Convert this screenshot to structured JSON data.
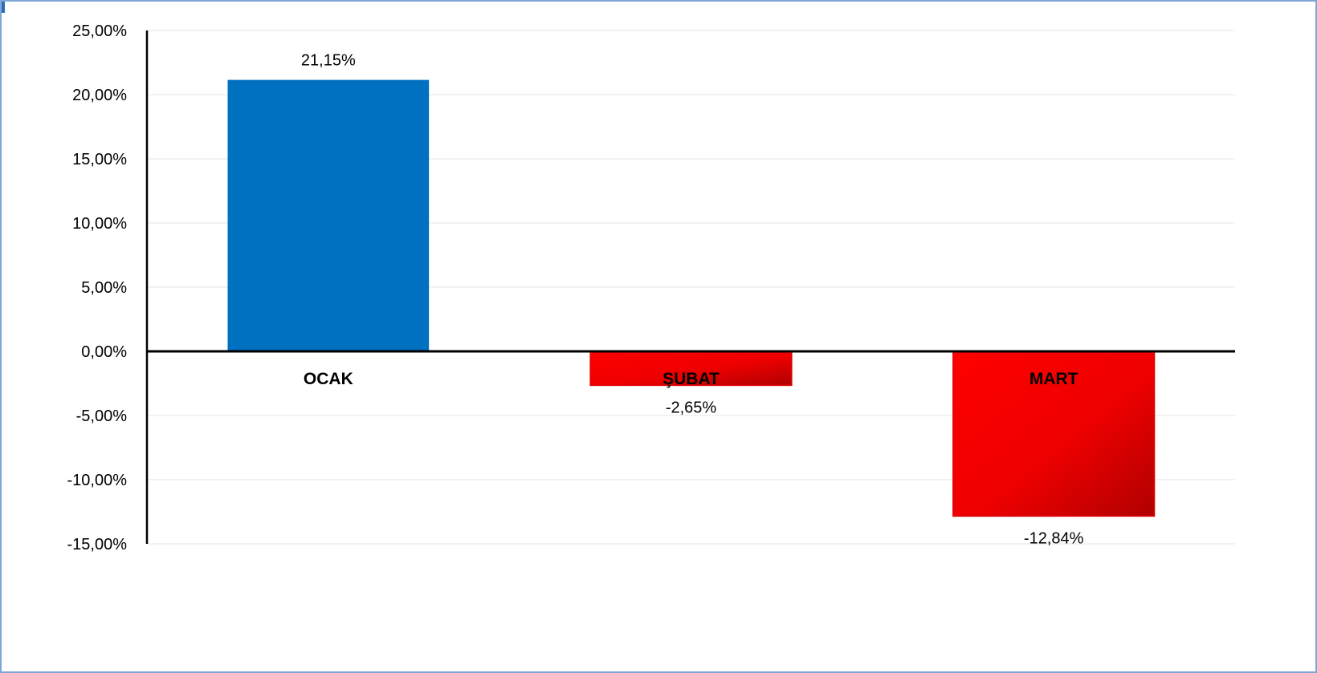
{
  "chart_data": {
    "type": "bar",
    "title": "",
    "xlabel": "",
    "ylabel": "",
    "categories": [
      "OCAK",
      "ŞUBAT",
      "MART"
    ],
    "values": [
      21.15,
      -2.65,
      -12.84
    ],
    "value_labels": [
      "21,15%",
      "-2,65%",
      "-12,84%"
    ],
    "ylim": [
      -15,
      25
    ],
    "y_ticks": [
      25,
      20,
      15,
      10,
      5,
      0,
      -5,
      -10,
      -15
    ],
    "y_tick_labels": [
      "25,00%",
      "20,00%",
      "15,00%",
      "10,00%",
      "5,00%",
      "0,00%",
      "-5,00%",
      "-10,00%",
      "-15,00%"
    ],
    "grid": true,
    "legend": "none",
    "colors": {
      "positive": "#0070c0",
      "negative": "#ff0000",
      "negative_dark": "#b00000",
      "gridline": "#ebebeb",
      "axis": "#000000",
      "frame": "#7ea6d8"
    }
  }
}
